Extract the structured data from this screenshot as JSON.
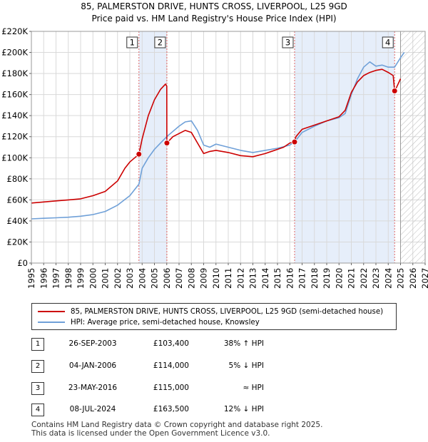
{
  "title_line1": "85, PALMERSTON DRIVE, HUNTS CROSS, LIVERPOOL, L25 9GD",
  "title_line2": "Price paid vs. HM Land Registry's House Price Index (HPI)",
  "chart_data": {
    "type": "line",
    "title": "Price paid vs. HM Land Registry's House Price Index (HPI)",
    "xlabel": "",
    "ylabel": "",
    "xlim": [
      1995,
      2027
    ],
    "ylim": [
      0,
      220000
    ],
    "x_ticks": [
      1995,
      1996,
      1997,
      1998,
      1999,
      2000,
      2001,
      2002,
      2003,
      2004,
      2005,
      2006,
      2007,
      2008,
      2009,
      2010,
      2011,
      2012,
      2013,
      2014,
      2015,
      2016,
      2017,
      2018,
      2019,
      2020,
      2021,
      2022,
      2023,
      2024,
      2025,
      2026,
      2027
    ],
    "y_ticks": [
      0,
      20000,
      40000,
      60000,
      80000,
      100000,
      120000,
      140000,
      160000,
      180000,
      200000,
      220000
    ],
    "y_tick_labels": [
      "£0",
      "£20K",
      "£40K",
      "£60K",
      "£80K",
      "£100K",
      "£120K",
      "£140K",
      "£160K",
      "£180K",
      "£200K",
      "£220K"
    ],
    "grid": true,
    "future_hatch_from": 2025.0,
    "series": [
      {
        "name": "85, PALMERSTON DRIVE, HUNTS CROSS, LIVERPOOL, L25 9GD (semi-detached house)",
        "color": "#cc0000",
        "x": [
          1995.0,
          1996.0,
          1997.0,
          1998.0,
          1999.0,
          2000.0,
          2001.0,
          2002.0,
          2002.6,
          2003.0,
          2003.74,
          2004.0,
          2004.5,
          2005.0,
          2005.5,
          2005.9,
          2006.0,
          2006.01,
          2006.5,
          2007.0,
          2007.5,
          2008.0,
          2008.5,
          2009.0,
          2009.5,
          2010.0,
          2011.0,
          2012.0,
          2013.0,
          2014.0,
          2015.0,
          2015.5,
          2016.0,
          2016.39,
          2016.5,
          2017.0,
          2018.0,
          2019.0,
          2020.0,
          2020.5,
          2021.0,
          2021.5,
          2022.0,
          2022.5,
          2023.0,
          2023.5,
          2024.0,
          2024.4,
          2024.52,
          2024.6,
          2025.0
        ],
        "y": [
          57000,
          58000,
          59000,
          60000,
          61000,
          64000,
          68000,
          78000,
          90000,
          96000,
          103400,
          118000,
          140000,
          155000,
          165000,
          170000,
          168000,
          114000,
          120000,
          123000,
          126000,
          124000,
          114000,
          104000,
          106000,
          107000,
          105000,
          102000,
          101000,
          104000,
          108000,
          110000,
          114000,
          115000,
          120000,
          127000,
          131000,
          135000,
          139000,
          145000,
          162000,
          172000,
          178000,
          181000,
          183000,
          184000,
          181000,
          178000,
          163500,
          165000,
          175000
        ]
      },
      {
        "name": "HPI: Average price, semi-detached house, Knowsley",
        "color": "#6fa0d8",
        "x": [
          1995.0,
          1996.0,
          1997.0,
          1998.0,
          1999.0,
          2000.0,
          2001.0,
          2002.0,
          2003.0,
          2003.74,
          2004.0,
          2004.5,
          2005.0,
          2005.5,
          2006.0,
          2006.5,
          2007.0,
          2007.5,
          2008.0,
          2008.5,
          2009.0,
          2009.5,
          2010.0,
          2011.0,
          2012.0,
          2013.0,
          2014.0,
          2015.0,
          2016.0,
          2016.39,
          2017.0,
          2018.0,
          2019.0,
          2020.0,
          2020.5,
          2021.0,
          2021.5,
          2022.0,
          2022.5,
          2023.0,
          2023.5,
          2024.0,
          2024.52,
          2025.0,
          2025.3
        ],
        "y": [
          42000,
          42500,
          43000,
          43500,
          44500,
          46000,
          49000,
          55000,
          64000,
          75000,
          90000,
          100000,
          108000,
          114000,
          120000,
          125000,
          130000,
          134000,
          135000,
          126000,
          112000,
          110000,
          113000,
          110000,
          107000,
          105000,
          107000,
          109000,
          112000,
          115000,
          124000,
          130000,
          135000,
          138000,
          142000,
          160000,
          175000,
          186000,
          191000,
          187000,
          188000,
          186000,
          186000,
          195000,
          200000
        ]
      }
    ],
    "transactions": [
      {
        "label": "1",
        "date": "26-SEP-2003",
        "x": 2003.74,
        "price_value": 103400,
        "price": "£103,400",
        "hpi": "38% ↑ HPI"
      },
      {
        "label": "2",
        "date": "04-JAN-2006",
        "x": 2006.01,
        "price_value": 114000,
        "price": "£114,000",
        "hpi": "5% ↓ HPI"
      },
      {
        "label": "3",
        "date": "23-MAY-2016",
        "x": 2016.39,
        "price_value": 115000,
        "price": "£115,000",
        "hpi": "≈ HPI"
      },
      {
        "label": "4",
        "date": "08-JUL-2024",
        "x": 2024.52,
        "price_value": 163500,
        "price": "£163,500",
        "hpi": "12% ↓ HPI"
      }
    ],
    "shaded_periods": [
      [
        2003.74,
        2006.01
      ],
      [
        2016.39,
        2024.52
      ]
    ]
  },
  "legend": {
    "property_label": "85, PALMERSTON DRIVE, HUNTS CROSS, LIVERPOOL, L25 9GD (semi-detached house)",
    "hpi_label": "HPI: Average price, semi-detached house, Knowsley"
  },
  "footer_line1": "Contains HM Land Registry data © Crown copyright and database right 2025.",
  "footer_line2": "This data is licensed under the Open Government Licence v3.0."
}
